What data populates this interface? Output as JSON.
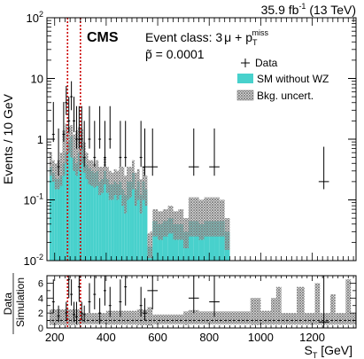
{
  "header": {
    "lumi_label": "35.9 fb",
    "lumi_exp": "-1",
    "energy_label": " (13 TeV)",
    "experiment": "CMS",
    "event_class_prefix": "Event class: 3",
    "event_class_mu": "μ",
    "event_class_mid": " + p",
    "event_class_sub": "T",
    "event_class_sup": "miss",
    "ptilde_symbol": "p̃",
    "ptilde_value": " = 0.0001"
  },
  "colors": {
    "sm": "#48d1cc",
    "uncertainty_hatch": "#7f7f7f",
    "roi_line": "#cc0000",
    "data": "#000000"
  },
  "chart_data": [
    {
      "type": "bar",
      "panel": "main",
      "ylabel": "Events / 10 GeV",
      "yscale": "log",
      "ylim": [
        0.01,
        100
      ],
      "xlim": [
        170,
        1370
      ],
      "yticks": [
        {
          "value": 0.01,
          "label": "10",
          "sup": "-2"
        },
        {
          "value": 0.1,
          "label": "10",
          "sup": "-1"
        },
        {
          "value": 1,
          "label": "1",
          "sup": ""
        },
        {
          "value": 10,
          "label": "10",
          "sup": ""
        },
        {
          "value": 100,
          "label": "10",
          "sup": "2"
        }
      ],
      "legend": {
        "position": "top-right",
        "entries": [
          {
            "label": "Data",
            "marker": "cross"
          },
          {
            "label": "SM without WZ",
            "marker": "fill"
          },
          {
            "label": "Bkg. uncert.",
            "marker": "hatch"
          }
        ]
      },
      "roi": {
        "x_low": 250,
        "x_high": 300
      },
      "sm_bins": [
        [
          180,
          190,
          0.35
        ],
        [
          190,
          200,
          0.28
        ],
        [
          200,
          210,
          0.22
        ],
        [
          210,
          220,
          0.22
        ],
        [
          220,
          230,
          0.25
        ],
        [
          230,
          240,
          0.4
        ],
        [
          240,
          250,
          0.6
        ],
        [
          250,
          260,
          0.9
        ],
        [
          260,
          270,
          1.1
        ],
        [
          270,
          280,
          0.5
        ],
        [
          280,
          290,
          0.4
        ],
        [
          290,
          300,
          0.6
        ],
        [
          300,
          310,
          0.75
        ],
        [
          310,
          320,
          0.5
        ],
        [
          320,
          330,
          0.38
        ],
        [
          330,
          340,
          0.33
        ],
        [
          340,
          350,
          0.3
        ],
        [
          350,
          360,
          0.28
        ],
        [
          360,
          370,
          0.3
        ],
        [
          370,
          380,
          0.2
        ],
        [
          380,
          390,
          0.22
        ],
        [
          390,
          400,
          0.3
        ],
        [
          400,
          410,
          0.22
        ],
        [
          410,
          420,
          0.18
        ],
        [
          420,
          430,
          0.18
        ],
        [
          430,
          440,
          0.2
        ],
        [
          440,
          450,
          0.18
        ],
        [
          450,
          460,
          0.2
        ],
        [
          460,
          470,
          0.15
        ],
        [
          470,
          480,
          0.12
        ],
        [
          480,
          490,
          0.2
        ],
        [
          490,
          500,
          0.2
        ],
        [
          500,
          510,
          0.28
        ],
        [
          510,
          520,
          0.15
        ],
        [
          520,
          530,
          0.2
        ],
        [
          530,
          540,
          0.12
        ],
        [
          540,
          550,
          0.2
        ],
        [
          550,
          560,
          0.15
        ],
        [
          560,
          570,
          0.017
        ],
        [
          570,
          580,
          0.017
        ],
        [
          580,
          600,
          0.045
        ],
        [
          600,
          620,
          0.04
        ],
        [
          620,
          640,
          0.045
        ],
        [
          640,
          660,
          0.05
        ],
        [
          660,
          680,
          0.04
        ],
        [
          680,
          700,
          0.04
        ],
        [
          700,
          720,
          0.03
        ],
        [
          720,
          740,
          0.045
        ],
        [
          740,
          760,
          0.045
        ],
        [
          760,
          780,
          0.04
        ],
        [
          780,
          800,
          0.045
        ],
        [
          800,
          820,
          0.045
        ],
        [
          820,
          840,
          0.045
        ],
        [
          840,
          860,
          0.045
        ],
        [
          860,
          880,
          0.03
        ]
      ],
      "band": [
        [
          180,
          190,
          0.25,
          0.6
        ],
        [
          190,
          200,
          0.2,
          0.45
        ],
        [
          200,
          210,
          0.15,
          0.4
        ],
        [
          210,
          220,
          0.15,
          0.45
        ],
        [
          220,
          230,
          0.17,
          0.6
        ],
        [
          230,
          240,
          0.25,
          1.4
        ],
        [
          240,
          250,
          0.4,
          1.8
        ],
        [
          250,
          260,
          0.6,
          1.6
        ],
        [
          260,
          270,
          0.5,
          1.7
        ],
        [
          270,
          280,
          0.3,
          1.2
        ],
        [
          280,
          290,
          0.25,
          1.4
        ],
        [
          290,
          300,
          0.3,
          1.6
        ],
        [
          300,
          310,
          0.4,
          1.5
        ],
        [
          310,
          320,
          0.28,
          0.9
        ],
        [
          320,
          330,
          0.22,
          0.6
        ],
        [
          330,
          340,
          0.18,
          0.45
        ],
        [
          340,
          350,
          0.17,
          0.45
        ],
        [
          350,
          360,
          0.16,
          0.4
        ],
        [
          360,
          370,
          0.17,
          0.45
        ],
        [
          370,
          380,
          0.12,
          0.35
        ],
        [
          380,
          390,
          0.13,
          0.35
        ],
        [
          390,
          400,
          0.18,
          0.5
        ],
        [
          400,
          410,
          0.13,
          0.35
        ],
        [
          410,
          420,
          0.1,
          0.3
        ],
        [
          420,
          430,
          0.1,
          0.28
        ],
        [
          430,
          440,
          0.12,
          0.32
        ],
        [
          440,
          450,
          0.1,
          0.3
        ],
        [
          450,
          460,
          0.12,
          0.35
        ],
        [
          460,
          470,
          0.08,
          0.35
        ],
        [
          470,
          480,
          0.06,
          0.25
        ],
        [
          480,
          490,
          0.1,
          0.35
        ],
        [
          490,
          500,
          0.11,
          0.35
        ],
        [
          500,
          510,
          0.15,
          0.45
        ],
        [
          510,
          520,
          0.08,
          0.28
        ],
        [
          520,
          530,
          0.1,
          0.32
        ],
        [
          530,
          540,
          0.06,
          0.22
        ],
        [
          540,
          550,
          0.1,
          0.35
        ],
        [
          550,
          560,
          0.08,
          0.25
        ],
        [
          560,
          570,
          0.011,
          0.028
        ],
        [
          570,
          580,
          0.011,
          0.03
        ],
        [
          580,
          600,
          0.025,
          0.07
        ],
        [
          600,
          620,
          0.022,
          0.065
        ],
        [
          620,
          640,
          0.025,
          0.07
        ],
        [
          640,
          660,
          0.028,
          0.08
        ],
        [
          660,
          680,
          0.022,
          0.065
        ],
        [
          680,
          700,
          0.022,
          0.07
        ],
        [
          700,
          720,
          0.016,
          0.05
        ],
        [
          720,
          740,
          0.025,
          0.11
        ],
        [
          740,
          760,
          0.025,
          0.11
        ],
        [
          760,
          780,
          0.022,
          0.1
        ],
        [
          780,
          800,
          0.025,
          0.11
        ],
        [
          800,
          820,
          0.025,
          0.11
        ],
        [
          820,
          840,
          0.025,
          0.11
        ],
        [
          840,
          860,
          0.025,
          0.1
        ],
        [
          860,
          880,
          0.015,
          0.05
        ]
      ],
      "data_points": [
        [
          195,
          1.2,
          0.9,
          4.1,
          10
        ],
        [
          215,
          0.35,
          0.25,
          1.5,
          10
        ],
        [
          235,
          1.2,
          0.9,
          4.1,
          10
        ],
        [
          245,
          4.0,
          2.5,
          7.5,
          10
        ],
        [
          255,
          2.0,
          1.3,
          5.0,
          10
        ],
        [
          265,
          5.0,
          3.0,
          9.0,
          10
        ],
        [
          275,
          2.0,
          1.3,
          5.0,
          10
        ],
        [
          285,
          1.0,
          0.7,
          3.5,
          10
        ],
        [
          295,
          1.0,
          0.7,
          3.5,
          10
        ],
        [
          305,
          1.0,
          0.7,
          3.5,
          10
        ],
        [
          315,
          0.5,
          0.35,
          2.0,
          10
        ],
        [
          335,
          1.0,
          0.7,
          3.5,
          10
        ],
        [
          355,
          0.5,
          0.35,
          2.0,
          10
        ],
        [
          375,
          1.0,
          0.7,
          3.5,
          10
        ],
        [
          395,
          0.5,
          0.35,
          2.0,
          10
        ],
        [
          415,
          1.0,
          0.7,
          3.5,
          10
        ],
        [
          455,
          0.5,
          0.35,
          2.0,
          10
        ],
        [
          475,
          0.5,
          0.35,
          2.0,
          10
        ],
        [
          535,
          0.5,
          0.35,
          2.0,
          10
        ],
        [
          550,
          0.35,
          0.25,
          1.5,
          20
        ],
        [
          580,
          0.35,
          0.25,
          1.5,
          40
        ],
        [
          740,
          0.35,
          0.25,
          1.5,
          40
        ],
        [
          820,
          0.35,
          0.25,
          1.5,
          40
        ],
        [
          1245,
          0.2,
          0.15,
          0.75,
          40
        ]
      ]
    },
    {
      "type": "bar",
      "panel": "ratio",
      "ylabel": "Data / Simulation",
      "xlabel": "S",
      "xlabel_sub": "T",
      "xlabel_unit": " [GeV]",
      "xlim": [
        170,
        1370
      ],
      "ylim": [
        0,
        7
      ],
      "yticks": [
        0,
        2,
        4,
        6
      ],
      "xticks": [
        200,
        400,
        600,
        800,
        1000,
        1200
      ],
      "band": [
        [
          180,
          300,
          0.4,
          2.5
        ],
        [
          300,
          400,
          0.5,
          2.0
        ],
        [
          400,
          520,
          0.45,
          2.3
        ],
        [
          520,
          560,
          0.4,
          2.5
        ],
        [
          560,
          580,
          0.3,
          2.8
        ],
        [
          580,
          700,
          0.5,
          1.8
        ],
        [
          700,
          720,
          0.4,
          2.2
        ],
        [
          720,
          760,
          0.5,
          2.4
        ],
        [
          760,
          960,
          0.5,
          2.2
        ],
        [
          960,
          1000,
          0.4,
          4.0
        ],
        [
          1000,
          1040,
          0.45,
          2.3
        ],
        [
          1040,
          1060,
          0.45,
          4.0
        ],
        [
          1060,
          1080,
          0.45,
          5.5
        ],
        [
          1080,
          1140,
          0.45,
          2.0
        ],
        [
          1140,
          1170,
          0.45,
          5.5
        ],
        [
          1170,
          1210,
          0.45,
          2.0
        ],
        [
          1210,
          1230,
          0.45,
          6.0
        ],
        [
          1230,
          1270,
          0.45,
          2.0
        ],
        [
          1270,
          1290,
          0.45,
          4.5
        ],
        [
          1290,
          1330,
          0.45,
          2.0
        ],
        [
          1330,
          1350,
          0.45,
          6.5
        ],
        [
          1350,
          1370,
          0.45,
          2.0
        ]
      ],
      "data_points": [
        [
          195,
          3.5,
          2.0,
          6.5,
          10
        ],
        [
          215,
          1.6,
          0.8,
          3.0,
          10
        ],
        [
          245,
          2.0,
          1.0,
          3.5,
          10
        ],
        [
          255,
          6.5,
          4.0,
          7.0,
          10
        ],
        [
          265,
          4.5,
          3.0,
          6.5,
          10
        ],
        [
          275,
          1.8,
          0.8,
          3.5,
          10
        ],
        [
          285,
          1.5,
          0.5,
          3.5,
          10
        ],
        [
          295,
          5.5,
          3.5,
          7.0,
          10
        ],
        [
          305,
          2.0,
          1.0,
          3.5,
          10
        ],
        [
          315,
          1.8,
          0.8,
          3.0,
          10
        ],
        [
          335,
          3.5,
          2.0,
          6.0,
          10
        ],
        [
          355,
          4.5,
          2.5,
          7.0,
          10
        ],
        [
          375,
          2.0,
          0.5,
          4.0,
          10
        ],
        [
          395,
          5.0,
          3.0,
          7.0,
          10
        ],
        [
          415,
          3.0,
          1.5,
          5.5,
          10
        ],
        [
          455,
          3.5,
          1.5,
          6.5,
          10
        ],
        [
          475,
          5.5,
          3.0,
          7.0,
          10
        ],
        [
          535,
          3.0,
          1.5,
          5.5,
          10
        ],
        [
          550,
          2.0,
          1.0,
          4.0,
          20
        ],
        [
          580,
          5.0,
          2.5,
          7.0,
          40
        ],
        [
          740,
          4.0,
          2.0,
          7.0,
          40
        ],
        [
          820,
          3.5,
          1.5,
          7.0,
          40
        ],
        [
          1245,
          0.8,
          0.0,
          7.0,
          40
        ]
      ]
    }
  ]
}
